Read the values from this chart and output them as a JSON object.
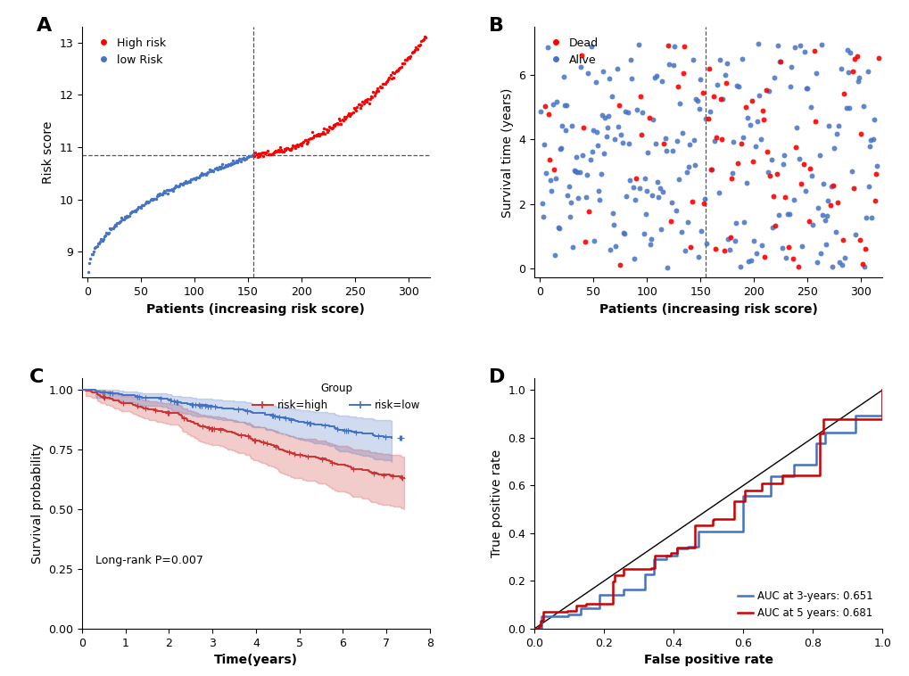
{
  "panel_A": {
    "title": "A",
    "n_patients": 316,
    "cutoff_x": 155,
    "cutoff_y": 10.85,
    "low_risk_color": "#4472C4",
    "high_risk_color": "#FF0000",
    "xlabel": "Patients (increasing risk score)",
    "ylabel": "Risk score",
    "ylim": [
      8.5,
      13.3
    ],
    "xlim": [
      -5,
      320
    ],
    "yticks": [
      9,
      10,
      11,
      12,
      13
    ],
    "xticks": [
      0,
      50,
      100,
      150,
      200,
      250,
      300
    ]
  },
  "panel_B": {
    "title": "B",
    "n_patients": 316,
    "cutoff_x": 155,
    "dead_color": "#FF0000",
    "alive_color": "#4472C4",
    "xlabel": "Patients (increasing risk score)",
    "ylabel": "Survival time (years)",
    "ylim": [
      -0.3,
      7.5
    ],
    "xlim": [
      -5,
      320
    ],
    "yticks": [
      0,
      2,
      4,
      6
    ],
    "xticks": [
      0,
      50,
      100,
      150,
      200,
      250,
      300
    ]
  },
  "panel_C": {
    "title": "C",
    "xlabel": "Time(years)",
    "ylabel": "Survival probability",
    "xlim": [
      0,
      8
    ],
    "ylim": [
      0.0,
      1.05
    ],
    "xticks": [
      0,
      1,
      2,
      3,
      4,
      5,
      6,
      7,
      8
    ],
    "yticks": [
      0.0,
      0.25,
      0.5,
      0.75,
      1.0
    ],
    "high_color": "#CC3333",
    "low_color": "#4472C4",
    "pvalue_text": "Long-rank P=0.007"
  },
  "panel_D": {
    "title": "D",
    "xlabel": "False positive rate",
    "ylabel": "True positive rate",
    "xlim": [
      0.0,
      1.0
    ],
    "ylim": [
      0.0,
      1.05
    ],
    "xticks": [
      0.0,
      0.2,
      0.4,
      0.6,
      0.8,
      1.0
    ],
    "yticks": [
      0.0,
      0.2,
      0.4,
      0.6,
      0.8,
      1.0
    ],
    "color_3yr": "#4472C4",
    "color_5yr": "#CC0000",
    "auc_3yr": 0.651,
    "auc_5yr": 0.681,
    "legend_3yr": "AUC at 3-years: 0.651",
    "legend_5yr": "AUC at 5 years: 0.681"
  },
  "background_color": "#FFFFFF",
  "panel_label_fontsize": 16,
  "axis_label_fontsize": 10,
  "tick_fontsize": 9
}
